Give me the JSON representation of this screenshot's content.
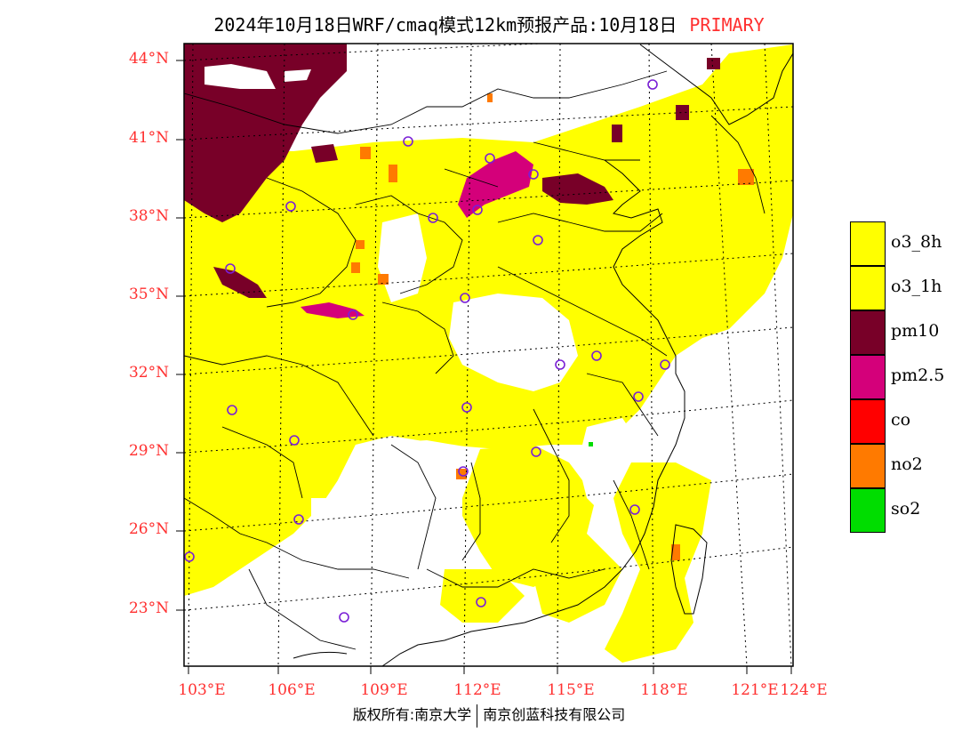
{
  "title": {
    "text": "2024年10月18日WRF/cmaq模式12km预报产品:10月18日",
    "tag": "PRIMARY",
    "tag_color": "#ff3030"
  },
  "axes": {
    "lat_labels": [
      "44°N",
      "41°N",
      "38°N",
      "35°N",
      "32°N",
      "29°N",
      "26°N",
      "23°N"
    ],
    "lon_labels": [
      "103°E",
      "106°E",
      "109°E",
      "112°E",
      "115°E",
      "118°E",
      "121°E",
      "124°E"
    ],
    "label_color": "#ff3030"
  },
  "legend": {
    "items": [
      {
        "label": "o3_8h",
        "color": "#ffff00"
      },
      {
        "label": "o3_1h",
        "color": "#ffff00"
      },
      {
        "label": "pm10",
        "color": "#780028"
      },
      {
        "label": "pm2.5",
        "color": "#d4007a"
      },
      {
        "label": "co",
        "color": "#ff0000"
      },
      {
        "label": "no2",
        "color": "#ff7a00"
      },
      {
        "label": "so2",
        "color": "#00dd00"
      }
    ]
  },
  "footer": {
    "left": "版权所有:南京大学",
    "right": "南京创蓝科技有限公司"
  }
}
